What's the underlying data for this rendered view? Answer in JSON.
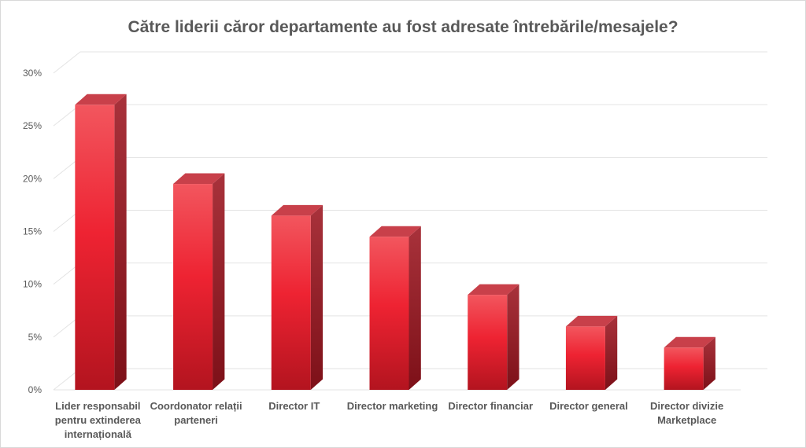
{
  "chart_data": {
    "type": "bar",
    "title": "Către liderii căror departamente au fost adresate întrebările/mesajele?",
    "categories": [
      [
        "Lider responsabil",
        "pentru extinderea",
        "internațională"
      ],
      [
        "Coordonator relații",
        "parteneri"
      ],
      [
        "Director IT"
      ],
      [
        "Director marketing"
      ],
      [
        "Director financiar"
      ],
      [
        "Director general"
      ],
      [
        "Director divizie",
        "Marketplace"
      ]
    ],
    "values": [
      27,
      19.5,
      16.5,
      14.5,
      9,
      6,
      4
    ],
    "ylim": [
      0,
      30
    ],
    "yticks": [
      0,
      5,
      10,
      15,
      20,
      25,
      30
    ],
    "ytick_suffix": "%",
    "grid": true,
    "legend": "none",
    "colors": {
      "bar_front_top": "#f2565e",
      "bar_front_mid": "#ee2332",
      "bar_front_bottom": "#b3141f",
      "bar_side": "#9c1a24",
      "bar_top": "#c8404a",
      "grid": "#e3e3e3",
      "axis_text": "#595959",
      "title": "#595959"
    }
  }
}
